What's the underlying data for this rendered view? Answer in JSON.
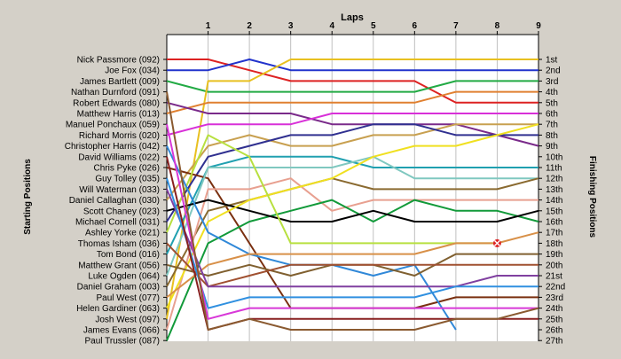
{
  "chart_data": {
    "type": "line",
    "title": "Laps",
    "ylabel_left": "Starting Positions",
    "ylabel_right": "Finishing Positions",
    "laps": [
      1,
      2,
      3,
      4,
      5,
      6,
      7,
      8,
      9
    ],
    "finishing_positions": [
      "1st",
      "2nd",
      "3rd",
      "4th",
      "5th",
      "6th",
      "7th",
      "8th",
      "9th",
      "10th",
      "11th",
      "12th",
      "13th",
      "14th",
      "15th",
      "16th",
      "17th",
      "18th",
      "19th",
      "20th",
      "21st",
      "22nd",
      "23rd",
      "24th",
      "25th",
      "26th",
      "27th"
    ],
    "grid": true,
    "markers": [
      {
        "series": "Thomas Isham (036)",
        "lap": 8,
        "position": 18,
        "symbol": "x",
        "color": "#dd2222"
      }
    ],
    "series": [
      {
        "name": "Nick Passmore (092)",
        "color": "#dd2222",
        "positions": [
          1,
          1,
          2,
          3,
          3,
          3,
          3,
          5,
          5,
          5
        ]
      },
      {
        "name": "Joe Fox (034)",
        "color": "#2233cc",
        "positions": [
          2,
          2,
          1,
          2,
          2,
          2,
          2,
          2,
          2,
          2
        ]
      },
      {
        "name": "James Bartlett (009)",
        "color": "#22aa44",
        "positions": [
          3,
          4,
          4,
          4,
          4,
          4,
          4,
          3,
          3,
          3
        ]
      },
      {
        "name": "Nathan Durnford (091)",
        "color": "#e8c020",
        "positions": [
          25,
          3,
          3,
          1,
          1,
          1,
          1,
          1,
          1,
          1
        ]
      },
      {
        "name": "Robert Edwards (080)",
        "color": "#e08030",
        "positions": [
          6,
          5,
          5,
          5,
          5,
          5,
          5,
          4,
          4,
          4
        ]
      },
      {
        "name": "Matthew Harris (013)",
        "color": "#7a2a8a",
        "positions": [
          5,
          6,
          6,
          6,
          7,
          7,
          7,
          7,
          8,
          9
        ]
      },
      {
        "name": "Manuel Ponchaux (059)",
        "color": "#d830d8",
        "positions": [
          8,
          7,
          7,
          7,
          6,
          6,
          6,
          6,
          6,
          6
        ]
      },
      {
        "name": "Richard Morris (020)",
        "color": "#c8a050",
        "positions": [
          14,
          9,
          8,
          9,
          9,
          8,
          8,
          7,
          7,
          7
        ]
      },
      {
        "name": "Christopher Harris (042)",
        "color": "#303090",
        "positions": [
          16,
          10,
          9,
          8,
          8,
          7,
          7,
          8,
          8,
          8
        ]
      },
      {
        "name": "David Williams (022)",
        "color": "#20a0b0",
        "positions": [
          19,
          11,
          10,
          10,
          10,
          11,
          11,
          11,
          11,
          11
        ]
      },
      {
        "name": "Chris Pyke (026)",
        "color": "#7a3010",
        "positions": [
          11,
          12,
          18,
          24,
          24,
          24,
          24,
          23,
          23,
          23
        ]
      },
      {
        "name": "Guy Tolley (035)",
        "color": "#80c8c0",
        "positions": [
          21,
          11,
          11,
          11,
          11,
          10,
          12,
          12,
          12,
          12
        ]
      },
      {
        "name": "Will Waterman (033)",
        "color": "#8a6a30",
        "positions": [
          22,
          15,
          14,
          13,
          12,
          13,
          13,
          13,
          13,
          12
        ]
      },
      {
        "name": "Daniel Callaghan (030)",
        "color": "#e8a090",
        "positions": [
          26,
          13,
          13,
          12,
          15,
          14,
          14,
          14,
          14,
          14
        ]
      },
      {
        "name": "Scott Chaney (023)",
        "color": "#129a3a",
        "positions": [
          27,
          18,
          16,
          15,
          14,
          16,
          14,
          15,
          15,
          16
        ]
      },
      {
        "name": "Michael Cornell (031)",
        "color": "#000000",
        "positions": [
          15,
          14,
          15,
          16,
          16,
          15,
          16,
          16,
          16,
          15
        ]
      },
      {
        "name": "Ashley Yorke (021)",
        "color": "#f0e020",
        "positions": [
          24,
          16,
          14,
          13,
          12,
          10,
          9,
          9,
          8,
          7
        ]
      },
      {
        "name": "Thomas Isham (036)",
        "color": "#b8e040",
        "positions": [
          17,
          8,
          10,
          18,
          18,
          18,
          18,
          18,
          18
        ]
      },
      {
        "name": "Tom Bond (016)",
        "color": "#3088d8",
        "positions": [
          9,
          17,
          19,
          20,
          20,
          21,
          20,
          26
        ]
      },
      {
        "name": "Matthew Grant (056)",
        "color": "#d89048",
        "positions": [
          23,
          20,
          19,
          19,
          19,
          19,
          19,
          18,
          18,
          17
        ]
      },
      {
        "name": "Luke Ogden (064)",
        "color": "#806030",
        "positions": [
          20,
          21,
          20,
          21,
          20,
          20,
          21,
          19,
          19,
          19
        ]
      },
      {
        "name": "Daniel Graham (003)",
        "color": "#a05030",
        "positions": [
          18,
          22,
          21,
          20,
          20,
          20,
          20,
          20,
          20,
          20
        ]
      },
      {
        "name": "Paul West (077)",
        "color": "#8040a0",
        "positions": [
          13,
          22,
          22,
          22,
          22,
          22,
          22,
          22,
          21,
          21
        ]
      },
      {
        "name": "Helen Gardiner (063)",
        "color": "#3090e0",
        "positions": [
          12,
          24,
          23,
          23,
          23,
          23,
          23,
          22,
          22,
          22
        ]
      },
      {
        "name": "Josh West (097)",
        "color": "#d838d8",
        "positions": [
          7,
          25,
          24,
          24,
          24,
          24,
          24,
          24,
          24,
          24
        ]
      },
      {
        "name": "James Evans (066)",
        "color": "#882020",
        "positions": [
          10,
          26,
          25,
          25,
          25,
          25,
          25,
          25,
          25,
          25
        ]
      },
      {
        "name": "Paul Trussler (087)",
        "color": "#8a5a30",
        "positions": [
          4,
          26,
          25,
          26,
          26,
          26,
          26,
          25,
          25,
          24
        ]
      }
    ]
  }
}
